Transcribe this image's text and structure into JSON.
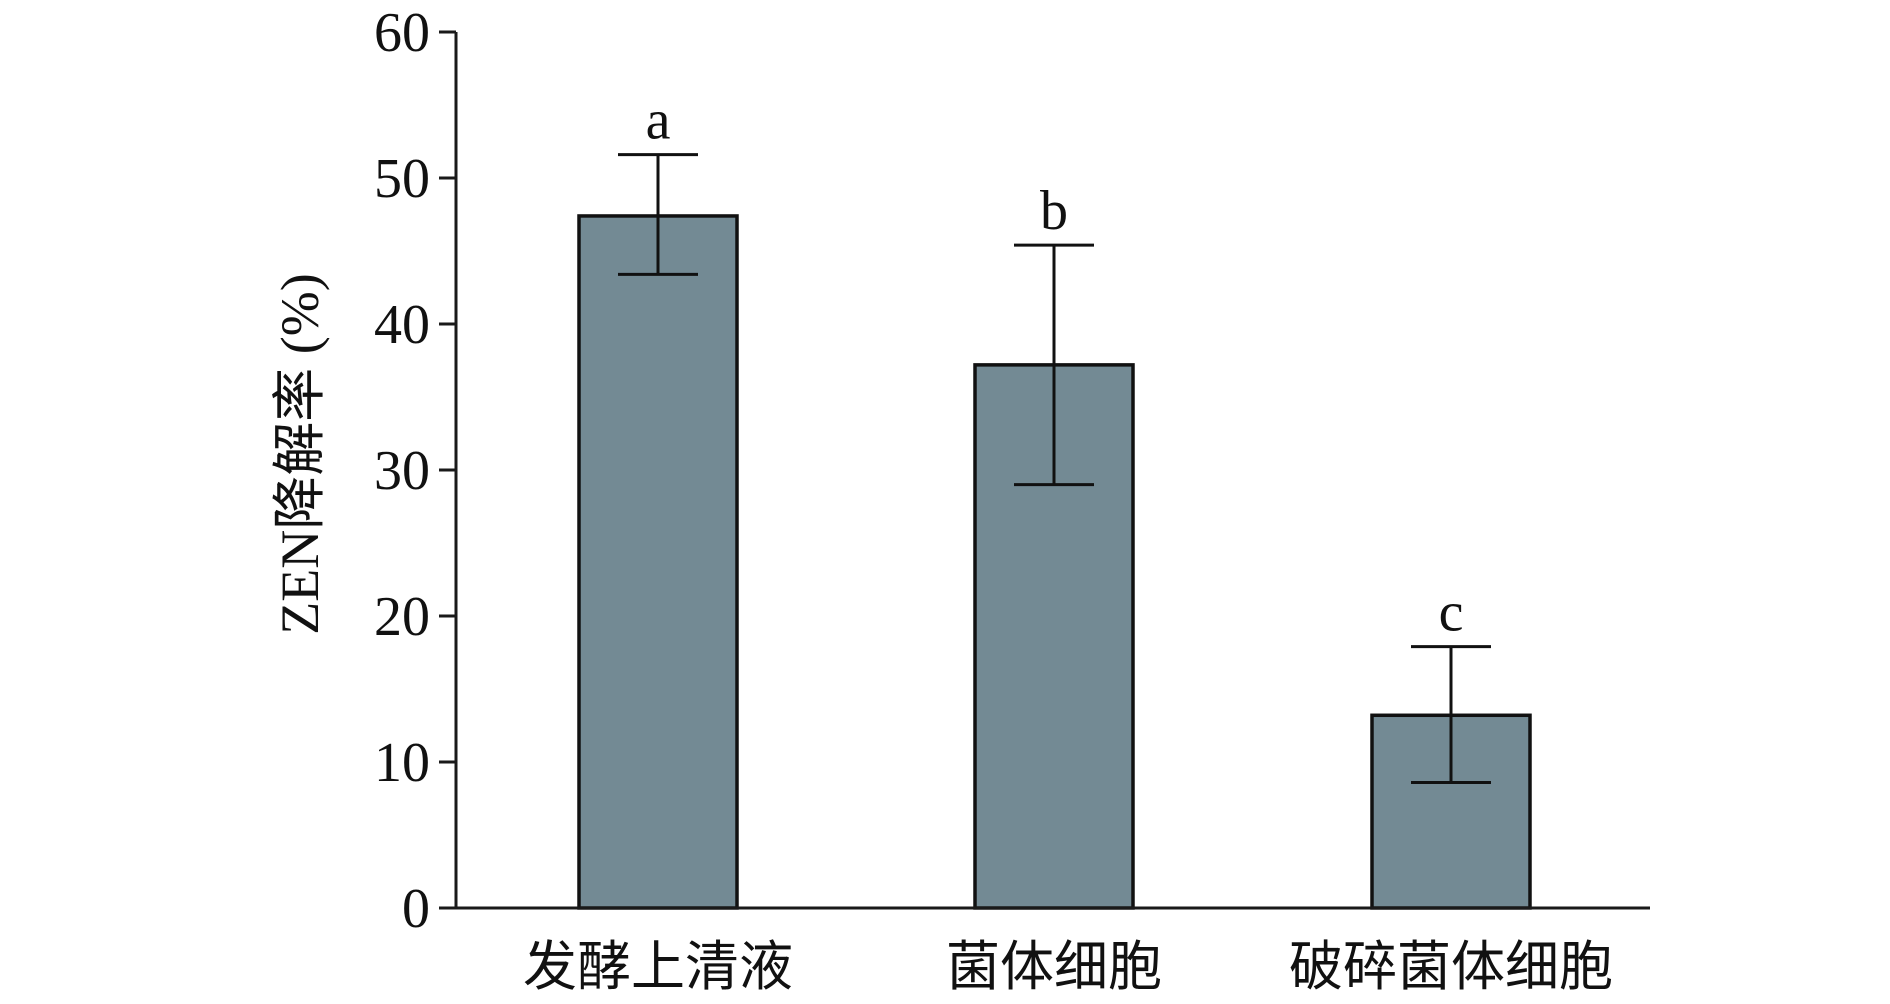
{
  "chart_data": {
    "type": "bar",
    "title": "",
    "xlabel": "",
    "ylabel": "ZEN降解率 (%)",
    "ylim": [
      0,
      60
    ],
    "yticks": [
      0,
      10,
      20,
      30,
      40,
      50,
      60
    ],
    "categories": [
      "发酵上清液",
      "菌体细胞",
      "破碎菌体细胞"
    ],
    "values": [
      47.4,
      37.2,
      13.2
    ],
    "error_low": [
      43.4,
      29.0,
      8.6
    ],
    "error_high": [
      51.6,
      45.4,
      17.9
    ],
    "significance_labels": [
      "a",
      "b",
      "c"
    ],
    "bar_color": "#738a94",
    "grid": false,
    "legend": "none"
  }
}
